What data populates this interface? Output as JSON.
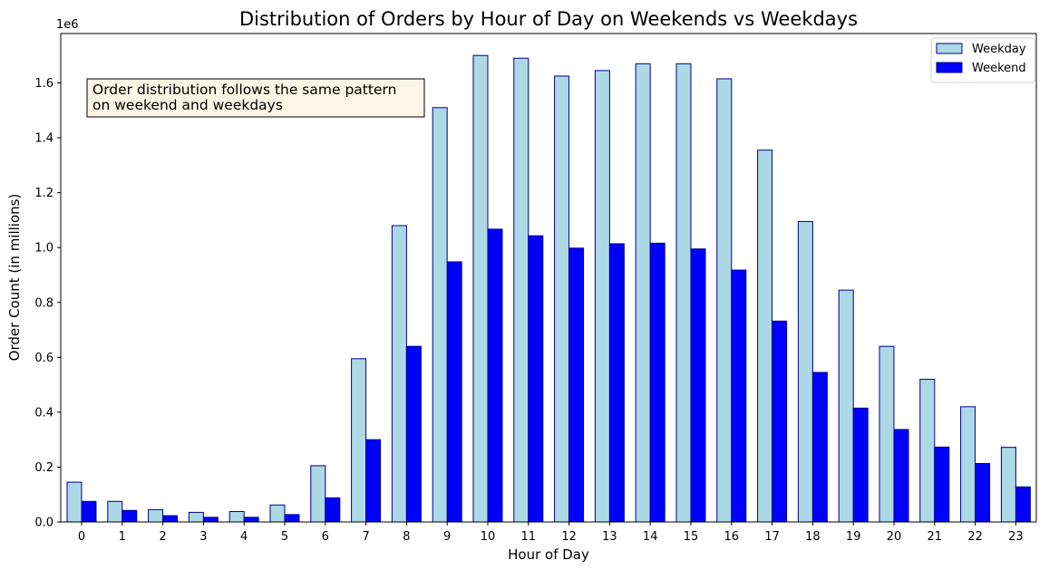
{
  "chart_data": {
    "type": "bar",
    "title": "Distribution of Orders by Hour of Day on Weekends vs Weekdays",
    "xlabel": "Hour of Day",
    "ylabel": "Order Count (in millions)",
    "offset_label": "1e6",
    "categories": [
      "0",
      "1",
      "2",
      "3",
      "4",
      "5",
      "6",
      "7",
      "8",
      "9",
      "10",
      "11",
      "12",
      "13",
      "14",
      "15",
      "16",
      "17",
      "18",
      "19",
      "20",
      "21",
      "22",
      "23"
    ],
    "series": [
      {
        "name": "Weekday",
        "color": "#add8e6",
        "edge_color": "#00008b",
        "values": [
          145000,
          75000,
          45000,
          35000,
          38000,
          62000,
          205000,
          595000,
          1080000,
          1510000,
          1700000,
          1690000,
          1625000,
          1645000,
          1670000,
          1670000,
          1615000,
          1355000,
          1095000,
          845000,
          640000,
          520000,
          420000,
          272000
        ]
      },
      {
        "name": "Weekend",
        "color": "#0000ff",
        "edge_color": "#00008b",
        "values": [
          75000,
          42000,
          23000,
          17000,
          17000,
          27000,
          88000,
          300000,
          640000,
          948000,
          1067000,
          1043000,
          998000,
          1014000,
          1016000,
          995000,
          918000,
          732000,
          545000,
          415000,
          337000,
          273000,
          213000,
          128000
        ]
      }
    ],
    "yticks": [
      "0.0",
      "0.2",
      "0.4",
      "0.6",
      "0.8",
      "1.0",
      "1.2",
      "1.4",
      "1.6"
    ],
    "ylim": [
      0,
      1780000
    ],
    "legend_position": "upper right",
    "annotation": {
      "lines": [
        "Order distribution follows the same pattern",
        "on weekend and weekdays"
      ],
      "background": "#fdf5e6"
    },
    "grid": false
  }
}
